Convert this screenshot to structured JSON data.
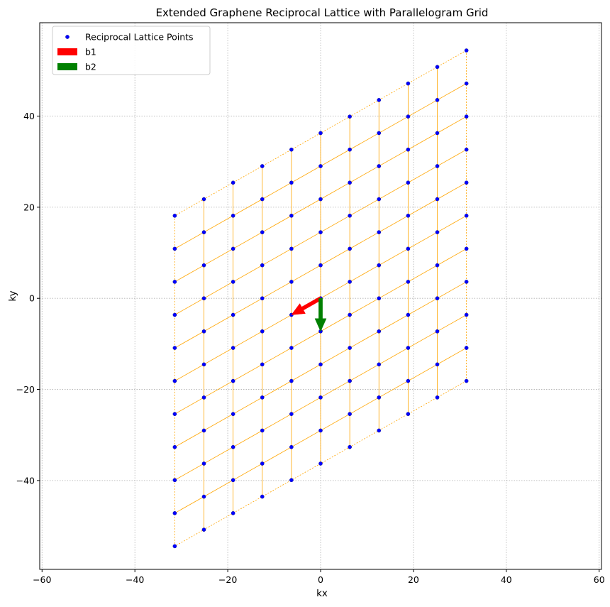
{
  "chart_data": {
    "type": "scatter",
    "title": "Extended Graphene Reciprocal Lattice with Parallelogram Grid",
    "xlabel": "kx",
    "ylabel": "ky",
    "xlim": [
      -60.5,
      60.5
    ],
    "ylim": [
      -59.5,
      60.5
    ],
    "xticks": [
      -60,
      -40,
      -20,
      0,
      20,
      40,
      60
    ],
    "xtick_labels": [
      "−60",
      "−40",
      "−20",
      "0",
      "20",
      "40",
      "60"
    ],
    "yticks": [
      -40,
      -20,
      0,
      20,
      40
    ],
    "ytick_labels": [
      "−40",
      "−20",
      "0",
      "20",
      "40"
    ],
    "grid": true,
    "legend_position": "top-left",
    "lattice": {
      "b1": [
        -6.283,
        -3.628
      ],
      "b2": [
        0,
        -7.255
      ],
      "n_range": [
        -5,
        5
      ],
      "m_range": [
        -5,
        5
      ]
    },
    "series": [
      {
        "name": "Reciprocal Lattice Points",
        "kind": "scatter",
        "color": "#0000ff"
      },
      {
        "name": "b1",
        "kind": "arrow",
        "color": "#ff0000",
        "from": [
          0,
          0
        ],
        "to": [
          -6.283,
          -3.628
        ]
      },
      {
        "name": "b2",
        "kind": "arrow",
        "color": "#008000",
        "from": [
          0,
          0
        ],
        "to": [
          0,
          -7.255
        ]
      }
    ],
    "grid_line_color": "#ffa500"
  }
}
